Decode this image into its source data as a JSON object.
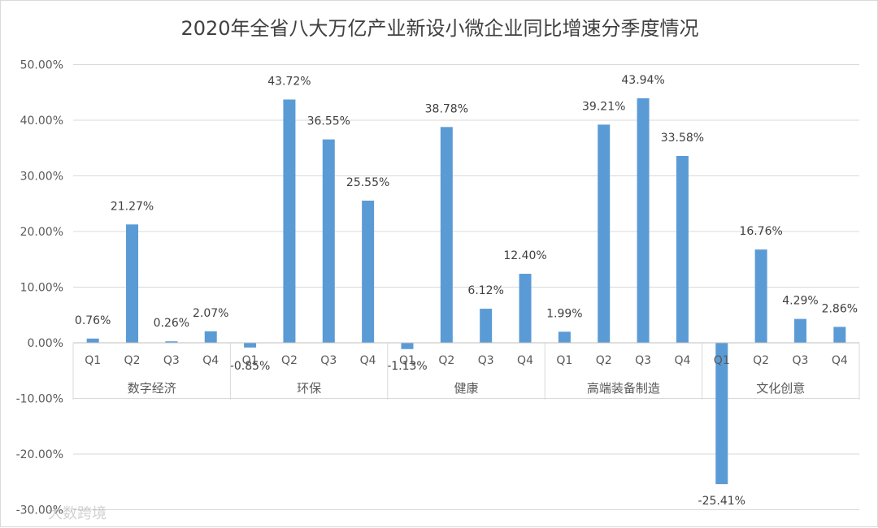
{
  "chart_data": {
    "type": "bar",
    "title": "2020年全省八大万亿产业新设小微企业同比增速分季度情况",
    "xlabel": "",
    "ylabel": "",
    "ylim": [
      -0.3,
      0.5
    ],
    "yticks": [
      0.5,
      0.4,
      0.3,
      0.2,
      0.1,
      0.0,
      -0.1,
      -0.2,
      -0.3
    ],
    "ytick_labels": [
      "50.00%",
      "40.00%",
      "30.00%",
      "20.00%",
      "10.00%",
      "0.00%",
      "-10.00%",
      "-20.00%",
      "-30.00%"
    ],
    "grid": true,
    "legend": "none",
    "bar_color": "#5b9bd5",
    "groups": [
      {
        "name": "数字经济",
        "categories": [
          "Q1",
          "Q2",
          "Q3",
          "Q4"
        ],
        "values": [
          0.0076,
          0.2127,
          0.0026,
          0.0207
        ],
        "labels": [
          "0.76%",
          "21.27%",
          "0.26%",
          "2.07%"
        ]
      },
      {
        "name": "环保",
        "categories": [
          "Q1",
          "Q2",
          "Q3",
          "Q4"
        ],
        "values": [
          -0.0085,
          0.4372,
          0.3655,
          0.2555
        ],
        "labels": [
          "-0.85%",
          "43.72%",
          "36.55%",
          "25.55%"
        ]
      },
      {
        "name": "健康",
        "categories": [
          "Q1",
          "Q2",
          "Q3",
          "Q4"
        ],
        "values": [
          -0.0113,
          0.3878,
          0.0612,
          0.124
        ],
        "labels": [
          "-1.13%",
          "38.78%",
          "6.12%",
          "12.40%"
        ]
      },
      {
        "name": "高端装备制造",
        "categories": [
          "Q1",
          "Q2",
          "Q3",
          "Q4"
        ],
        "values": [
          0.0199,
          0.3921,
          0.4394,
          0.3358
        ],
        "labels": [
          "1.99%",
          "39.21%",
          "43.94%",
          "33.58%"
        ]
      },
      {
        "name": "文化创意",
        "categories": [
          "Q1",
          "Q2",
          "Q3",
          "Q4"
        ],
        "values": [
          -0.2541,
          0.1676,
          0.0429,
          0.0286
        ],
        "labels": [
          "-25.41%",
          "16.76%",
          "4.29%",
          "2.86%"
        ]
      }
    ]
  },
  "watermark": "大数跨境"
}
